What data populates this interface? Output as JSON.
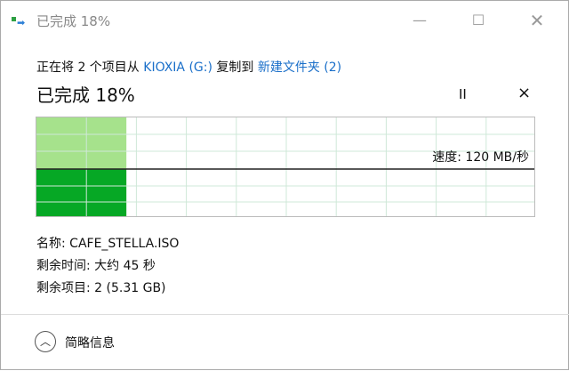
{
  "window": {
    "title": "已完成 18%",
    "icon": "copy-icon"
  },
  "message": {
    "prefix": "正在将 2 个项目从 ",
    "source": "KIOXIA (G:)",
    "middle": " 复制到 ",
    "dest": "新建文件夹 (2)"
  },
  "progress": {
    "label": "已完成 18%",
    "percent": 18
  },
  "controls": {
    "pause": "II",
    "cancel": "×"
  },
  "speed": {
    "label": "速度: 120 MB/秒"
  },
  "details": {
    "name": "名称: CAFE_STELLA.ISO",
    "time_left": "剩余时间: 大约 45 秒",
    "items_left": "剩余项目: 2 (5.31 GB)"
  },
  "footer": {
    "less_details": "简略信息"
  },
  "colors": {
    "fill_light": "#a6e28c",
    "fill_dark": "#06a825",
    "grid": "#cfe8d8",
    "link": "#1a6fc9"
  }
}
